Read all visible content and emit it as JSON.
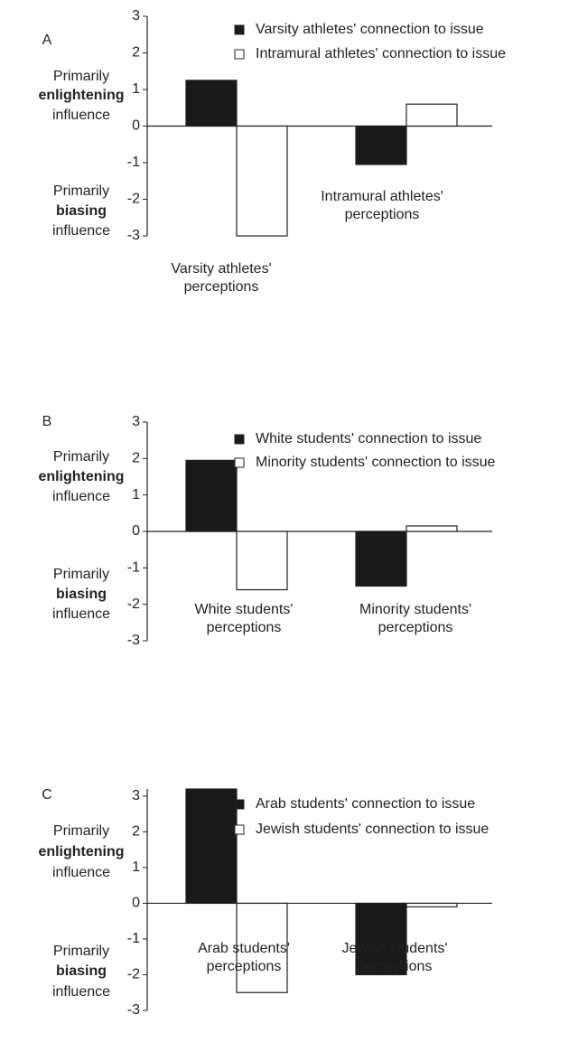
{
  "chart_data": [
    {
      "type": "bar",
      "panel": "A",
      "categories": [
        "Varsity athletes' perceptions",
        "Intramural athletes' perceptions"
      ],
      "series": [
        {
          "name": "Varsity athletes' connection to issue",
          "color": "#1a1a1a",
          "values": [
            1.25,
            -1.05
          ]
        },
        {
          "name": "Intramural athletes' connection to issue",
          "color": "#ffffff",
          "values": [
            -3,
            0.6
          ]
        }
      ],
      "ylim": [
        -3,
        3
      ],
      "yticks": [
        -3,
        -2,
        -1,
        0,
        1,
        2,
        3
      ],
      "annotations": {
        "positive": [
          "Primarily",
          "enlightening",
          "influence"
        ],
        "negative": [
          "Primarily",
          "biasing",
          "influence"
        ]
      }
    },
    {
      "type": "bar",
      "panel": "B",
      "categories": [
        "White students' perceptions",
        "Minority students' perceptions"
      ],
      "series": [
        {
          "name": "White students' connection to issue",
          "color": "#1a1a1a",
          "values": [
            1.95,
            -1.5
          ]
        },
        {
          "name": "Minority students' connection to issue",
          "color": "#ffffff",
          "values": [
            -1.6,
            0.15
          ]
        }
      ],
      "ylim": [
        -3,
        3
      ],
      "yticks": [
        -3,
        -2,
        -1,
        0,
        1,
        2,
        3
      ],
      "annotations": {
        "positive": [
          "Primarily",
          "enlightening",
          "influence"
        ],
        "negative": [
          "Primarily",
          "biasing",
          "influence"
        ]
      }
    },
    {
      "type": "bar",
      "panel": "C",
      "categories": [
        "Arab students' perceptions",
        "Jewish students' perceptions"
      ],
      "series": [
        {
          "name": "Arab students' connection to issue",
          "color": "#1a1a1a",
          "values": [
            3.2,
            -2
          ]
        },
        {
          "name": "Jewish students' connection to issue",
          "color": "#ffffff",
          "values": [
            -2.5,
            -0.1
          ]
        }
      ],
      "ylim": [
        -3,
        3.2
      ],
      "yticks": [
        -3,
        -2,
        -1,
        0,
        1,
        2,
        3
      ],
      "annotations": {
        "positive": [
          "Primarily",
          "enlightening",
          "influence"
        ],
        "negative": [
          "Primarily",
          "biasing",
          "influence"
        ]
      }
    }
  ]
}
